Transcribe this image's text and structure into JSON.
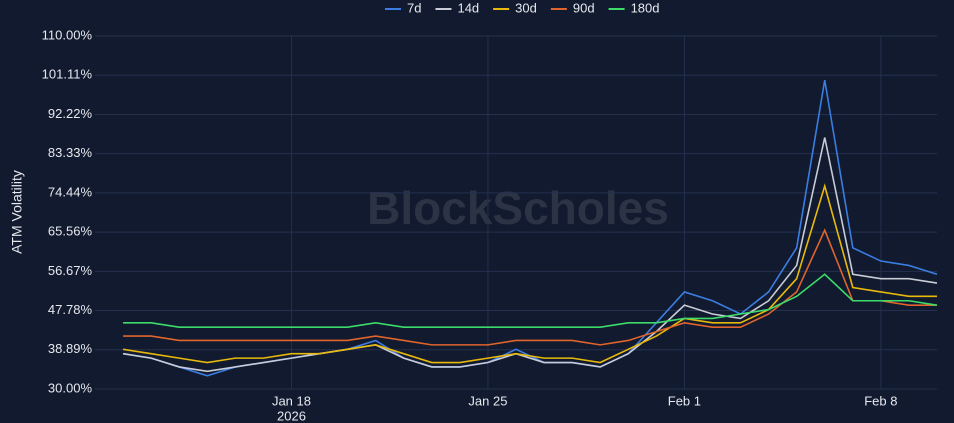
{
  "chart_data": {
    "type": "line",
    "y_label": "ATM Volatility",
    "watermark": "BlockScholes",
    "x_year_label": "2026",
    "x": [
      "2026-01-12",
      "2026-01-13",
      "2026-01-14",
      "2026-01-15",
      "2026-01-16",
      "2026-01-17",
      "2026-01-18",
      "2026-01-19",
      "2026-01-20",
      "2026-01-21",
      "2026-01-22",
      "2026-01-23",
      "2026-01-24",
      "2026-01-25",
      "2026-01-26",
      "2026-01-27",
      "2026-01-28",
      "2026-01-29",
      "2026-01-30",
      "2026-01-31",
      "2026-02-01",
      "2026-02-02",
      "2026-02-03",
      "2026-02-04",
      "2026-02-05",
      "2026-02-06",
      "2026-02-07",
      "2026-02-08",
      "2026-02-09",
      "2026-02-10"
    ],
    "series": [
      {
        "name": "7d",
        "color": "#3b7de0",
        "values": [
          38,
          37,
          35,
          33,
          35,
          36,
          37,
          38,
          39,
          41,
          37,
          35,
          35,
          36,
          39,
          36,
          36,
          35,
          38,
          45,
          52,
          50,
          47,
          52,
          62,
          100,
          62,
          59,
          58,
          56
        ]
      },
      {
        "name": "14d",
        "color": "#c9ccd6",
        "values": [
          38,
          37,
          35,
          34,
          35,
          36,
          37,
          38,
          39,
          40,
          37,
          35,
          35,
          36,
          38,
          36,
          36,
          35,
          38,
          43,
          49,
          47,
          46,
          50,
          58,
          87,
          56,
          55,
          55,
          54
        ]
      },
      {
        "name": "30d",
        "color": "#e8b90c",
        "values": [
          39,
          38,
          37,
          36,
          37,
          37,
          38,
          38,
          39,
          40,
          38,
          36,
          36,
          37,
          38,
          37,
          37,
          36,
          39,
          42,
          46,
          45,
          45,
          48,
          55,
          76,
          53,
          52,
          51,
          51
        ]
      },
      {
        "name": "90d",
        "color": "#e0642c",
        "values": [
          42,
          42,
          41,
          41,
          41,
          41,
          41,
          41,
          41,
          42,
          41,
          40,
          40,
          40,
          41,
          41,
          41,
          40,
          41,
          43,
          45,
          44,
          44,
          47,
          52,
          66,
          50,
          50,
          49,
          49
        ]
      },
      {
        "name": "180d",
        "color": "#3ddc6a",
        "values": [
          45,
          45,
          44,
          44,
          44,
          44,
          44,
          44,
          44,
          45,
          44,
          44,
          44,
          44,
          44,
          44,
          44,
          44,
          45,
          45,
          46,
          46,
          47,
          48,
          51,
          56,
          50,
          50,
          50,
          49
        ]
      }
    ],
    "xlim": [
      "2026-01-11",
      "2026-02-10"
    ],
    "xticks": [
      {
        "value": "2026-01-18",
        "label": "Jan 18"
      },
      {
        "value": "2026-01-25",
        "label": "Jan 25"
      },
      {
        "value": "2026-02-01",
        "label": "Feb 1"
      },
      {
        "value": "2026-02-08",
        "label": "Feb 8"
      }
    ],
    "ylim": [
      30,
      110
    ],
    "yticks": [
      {
        "value": 30,
        "label": "30.00%"
      },
      {
        "value": 38.89,
        "label": "38.89%"
      },
      {
        "value": 47.78,
        "label": "47.78%"
      },
      {
        "value": 56.67,
        "label": "56.67%"
      },
      {
        "value": 65.56,
        "label": "65.56%"
      },
      {
        "value": 74.44,
        "label": "74.44%"
      },
      {
        "value": 83.33,
        "label": "83.33%"
      },
      {
        "value": 92.22,
        "label": "92.22%"
      },
      {
        "value": 101.11,
        "label": "101.11%"
      },
      {
        "value": 110,
        "label": "110.00%"
      }
    ],
    "grid": true
  }
}
